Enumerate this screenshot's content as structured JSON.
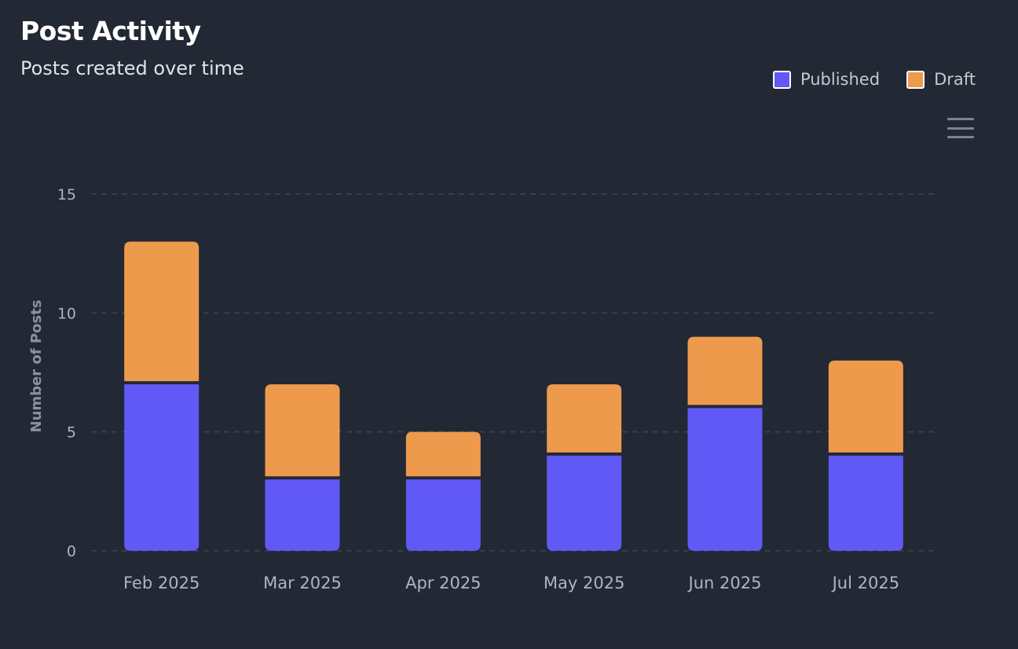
{
  "header": {
    "title": "Post Activity",
    "subtitle": "Posts created over time"
  },
  "legend": [
    {
      "label": "Published",
      "color": "#6159f6"
    },
    {
      "label": "Draft",
      "color": "#ee9a4d"
    }
  ],
  "toolbar": {
    "menu_icon": "hamburger-menu-icon"
  },
  "chart_data": {
    "type": "bar",
    "stacked": true,
    "categories": [
      "Feb 2025",
      "Mar 2025",
      "Apr 2025",
      "May 2025",
      "Jun 2025",
      "Jul 2025"
    ],
    "series": [
      {
        "name": "Published",
        "color": "#6159f6",
        "values": [
          7,
          3,
          3,
          4,
          6,
          4
        ]
      },
      {
        "name": "Draft",
        "color": "#ee9a4d",
        "values": [
          6,
          4,
          2,
          3,
          3,
          4
        ]
      }
    ],
    "ylabel": "Number of Posts",
    "xlabel": "",
    "ylim": [
      0,
      15
    ],
    "yticks": [
      0,
      5,
      10,
      15
    ],
    "grid": true,
    "legend_position": "top-right"
  }
}
